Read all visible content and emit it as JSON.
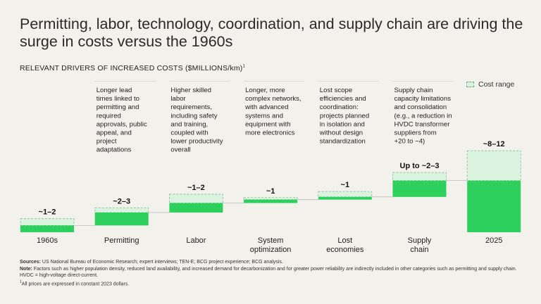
{
  "title": "Permitting, labor, technology, coordination, and supply chain are driving the surge in costs versus the 1960s",
  "subtitle": "RELEVANT DRIVERS OF INCREASED COSTS ($MILLIONS/km)",
  "subtitle_sup": "1",
  "legend_label": "Cost range",
  "colors": {
    "solid": "#2dcf5d",
    "range": "#d9f3de",
    "range_border": "#8fb894",
    "connector": "#bbbbbb",
    "bg": "#f2f1ec"
  },
  "chart_data": {
    "type": "bar",
    "subtype": "waterfall",
    "title": "Permitting, labor, technology, coordination, and supply chain are driving the surge in costs versus the 1960s",
    "ylabel": "$millions/km",
    "ylim": [
      0,
      12
    ],
    "categories": [
      "1960s",
      "Permitting",
      "Labor",
      "System optimization",
      "Lost economies",
      "Supply chain",
      "2025"
    ],
    "category_lines": [
      [
        "1960s"
      ],
      [
        "Permitting"
      ],
      [
        "Labor"
      ],
      [
        "System",
        "optimization"
      ],
      [
        "Lost",
        "economies"
      ],
      [
        "Supply",
        "chain"
      ],
      [
        "2025"
      ]
    ],
    "value_labels": [
      "~1–2",
      "~2–3",
      "~1–2",
      "~1",
      "~1",
      "Up to ~2–3",
      "~8–12"
    ],
    "bold_labels": [
      false,
      false,
      false,
      false,
      false,
      true,
      true
    ],
    "bars": [
      {
        "base": 0,
        "low": 1,
        "high": 2
      },
      {
        "base": 1,
        "low": 1.9,
        "high": 2.6
      },
      {
        "base": 2.9,
        "low": 1.4,
        "high": 2.7
      },
      {
        "base": 4.3,
        "low": 0.5,
        "high": 0.8
      },
      {
        "base": 4.8,
        "low": 0.4,
        "high": 1.2
      },
      {
        "base": 5.2,
        "low": 2.4,
        "high": 3.6
      },
      {
        "base": 0,
        "low": 7.6,
        "high": 12
      }
    ],
    "descriptions": [
      [],
      [
        "Longer lead",
        "times linked to",
        "permitting and",
        "required",
        "approvals, public",
        "appeal, and",
        "project",
        "adaptations"
      ],
      [
        "Higher skilled",
        "labor",
        "requirements,",
        "including safety",
        "and training,",
        "coupled with",
        "lower productivity",
        "overall"
      ],
      [
        "Longer, more",
        "complex networks,",
        "with advanced",
        "systems and",
        "equipment with",
        "more electronics"
      ],
      [
        "Lost scope",
        "efficiencies and",
        "coordination:",
        "projects planned",
        "in isolation and",
        "without design",
        "standardization"
      ],
      [
        "Supply chain",
        "capacity limitations",
        "and consolidation",
        "(e.g., a reduction in",
        "HVDC transformer",
        "suppliers from",
        "+20 to ~4)"
      ],
      []
    ]
  },
  "sources": {
    "sources_label": "Sources:",
    "sources_text": "US National Bureau of Economic Research; expert interviews; TEN-E; BCG project experience; BCG analysis.",
    "note_label": "Note:",
    "note_text": "Factors such as higher population density, reduced land availability, and increased demand for decarbonization and for greater power reliability are indirectly included in other categories such as permitting and supply chain. HVDC = high-voltage direct-current.",
    "footnote_mark": "1",
    "footnote_text": "All prices are expressed in constant 2023 dollars."
  }
}
